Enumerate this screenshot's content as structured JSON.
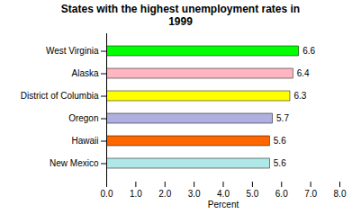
{
  "chart_data": {
    "type": "bar",
    "orientation": "horizontal",
    "title": "States  with the highest unemployment rates in\n1999",
    "categories": [
      "West Virginia",
      "Alaska",
      "District of Columbia",
      "Oregon",
      "Hawaii",
      "New Mexico"
    ],
    "values": [
      6.6,
      6.4,
      6.3,
      5.7,
      5.6,
      5.6
    ],
    "colors": [
      "#00ff00",
      "#ffb6c1",
      "#ffff00",
      "#b0b0e0",
      "#ff6600",
      "#b0e8e8"
    ],
    "xlabel": "Percent",
    "xlim": [
      0,
      8.0
    ],
    "xticks": [
      {
        "value": 0.0,
        "label": "0.0"
      },
      {
        "value": 1.0,
        "label": "1.0"
      },
      {
        "value": 2.0,
        "label": "2.0"
      },
      {
        "value": 3.0,
        "label": "3.0"
      },
      {
        "value": 4.0,
        "label": "4.0"
      },
      {
        "value": 5.0,
        "label": "5.0"
      },
      {
        "value": 6.0,
        "label": "6.0"
      },
      {
        "value": 7.0,
        "label": "7.0"
      },
      {
        "value": 8.0,
        "label": "8.0"
      }
    ],
    "data_labels": true,
    "grid": false
  }
}
